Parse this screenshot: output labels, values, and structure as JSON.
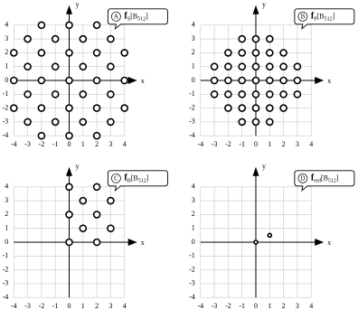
{
  "chart_data": [
    {
      "type": "scatter",
      "label": "A",
      "symbol": "f",
      "symbol_sub": "S",
      "set": "[B",
      "set_sub": "512",
      "set_end": "]",
      "x_label": "x",
      "y_label": "y",
      "xlim": [
        -4,
        4
      ],
      "ylim": [
        -4,
        4
      ],
      "xticks": [
        -4,
        -3,
        -2,
        -1,
        0,
        1,
        2,
        3,
        4
      ],
      "yticks": [
        -4,
        -3,
        -2,
        -1,
        0,
        1,
        2,
        3,
        4
      ],
      "grid": true,
      "marker_size": 3.5,
      "color": "#000000",
      "x": [
        -2,
        0,
        2,
        -3,
        -1,
        1,
        3,
        -4,
        -2,
        0,
        2,
        4,
        -3,
        -1,
        1,
        3,
        -4,
        -2,
        0,
        2,
        4,
        -3,
        -1,
        1,
        3,
        -4,
        -2,
        0,
        2,
        4,
        -3,
        -1,
        1,
        3,
        -2,
        0,
        2
      ],
      "y": [
        4,
        4,
        4,
        3,
        3,
        3,
        3,
        2,
        2,
        2,
        2,
        2,
        1,
        1,
        1,
        1,
        0,
        0,
        0,
        0,
        0,
        -1,
        -1,
        -1,
        -1,
        -2,
        -2,
        -2,
        -2,
        -2,
        -3,
        -3,
        -3,
        -3,
        -4,
        -4,
        -4
      ]
    },
    {
      "type": "scatter",
      "label": "B",
      "symbol": "f",
      "symbol_sub": "P",
      "set": "[B",
      "set_sub": "512",
      "set_end": "]",
      "x_label": "x",
      "y_label": "y",
      "xlim": [
        -4,
        4
      ],
      "ylim": [
        -4,
        4
      ],
      "xticks": [
        -4,
        -3,
        -2,
        -1,
        0,
        1,
        2,
        3,
        4
      ],
      "yticks": [
        -4,
        -3,
        -2,
        -1,
        0,
        1,
        2,
        3,
        4
      ],
      "grid": true,
      "marker_size": 3.5,
      "color": "#000000",
      "x": [
        -1,
        0,
        1,
        -2,
        -1,
        0,
        1,
        2,
        -3,
        -2,
        -1,
        0,
        1,
        2,
        3,
        -3,
        -2,
        -1,
        0,
        1,
        2,
        3,
        -3,
        -2,
        -1,
        0,
        1,
        2,
        3,
        -2,
        -1,
        0,
        1,
        2,
        -1,
        0,
        1
      ],
      "y": [
        3,
        3,
        3,
        2,
        2,
        2,
        2,
        2,
        1,
        1,
        1,
        1,
        1,
        1,
        1,
        0,
        0,
        0,
        0,
        0,
        0,
        0,
        -1,
        -1,
        -1,
        -1,
        -1,
        -1,
        -1,
        -2,
        -2,
        -2,
        -2,
        -2,
        -3,
        -3,
        -3
      ]
    },
    {
      "type": "scatter",
      "label": "C",
      "symbol": "f",
      "symbol_sub": "B",
      "set": "[B",
      "set_sub": "512",
      "set_end": "]",
      "x_label": "x",
      "y_label": "y",
      "xlim": [
        -4,
        4
      ],
      "ylim": [
        -4,
        4
      ],
      "xticks": [
        -4,
        -3,
        -2,
        -1,
        0,
        1,
        2,
        3,
        4
      ],
      "yticks": [
        -4,
        -3,
        -2,
        -1,
        0,
        1,
        2,
        3,
        4
      ],
      "grid": true,
      "marker_size": 3.5,
      "color": "#000000",
      "x": [
        0,
        2,
        1,
        3,
        0,
        2,
        1,
        3,
        0,
        2
      ],
      "y": [
        4,
        4,
        3,
        3,
        2,
        2,
        1,
        1,
        0,
        0
      ]
    },
    {
      "type": "scatter",
      "label": "D",
      "symbol": "f",
      "symbol_sub": "red",
      "set": "[B",
      "set_sub": "512",
      "set_end": "]",
      "x_label": "x",
      "y_label": "y",
      "xlim": [
        -4,
        4
      ],
      "ylim": [
        -4,
        4
      ],
      "xticks": [
        -4,
        -3,
        -2,
        -1,
        0,
        1,
        2,
        3,
        4
      ],
      "yticks": [
        -4,
        -3,
        -2,
        -1,
        0,
        1,
        2,
        3,
        4
      ],
      "grid": true,
      "marker_size": 2,
      "color": "#000000",
      "x": [
        0,
        1
      ],
      "y": [
        0,
        0.5
      ]
    }
  ]
}
